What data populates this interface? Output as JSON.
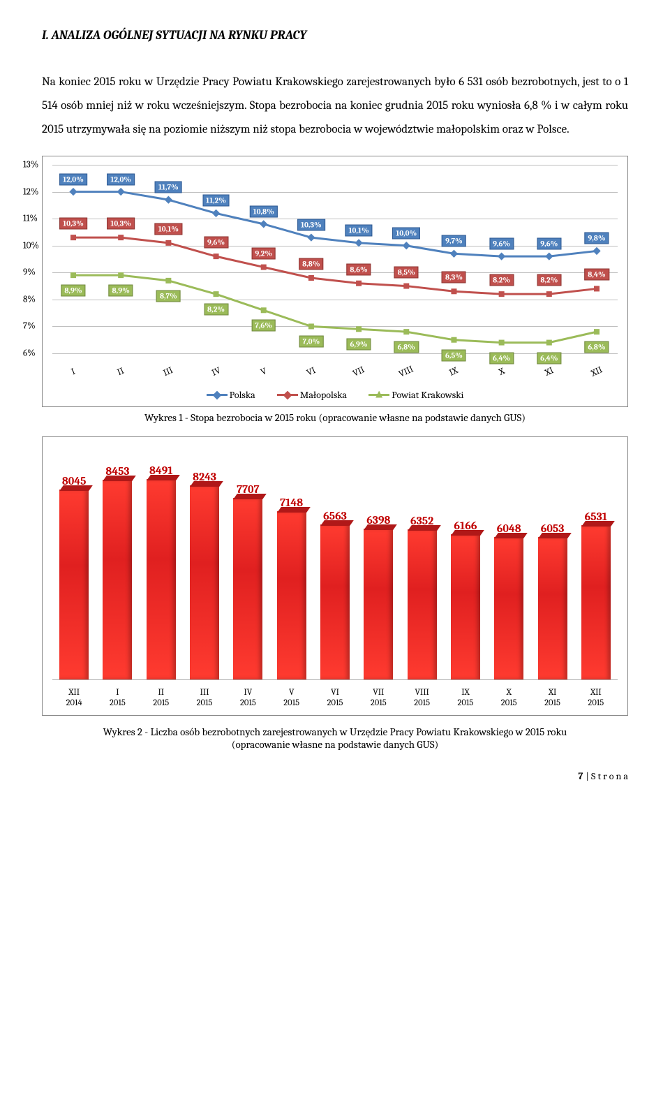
{
  "heading": "I. ANALIZA OGÓLNEJ SYTUACJI NA RYNKU PRACY",
  "paragraph": "Na koniec 2015 roku w Urzędzie Pracy Powiatu Krakowskiego zarejestrowanych było 6 531 osób bezrobotnych, jest to o 1 514 osób mniej niż w roku wcześniejszym. Stopa bezrobocia na koniec grudnia 2015 roku wyniosła 6,8 % i w całym roku 2015 utrzymywała się na poziomie niższym niż stopa bezrobocia w województwie małopolskim oraz w Polsce.",
  "caption1": "Wykres 1 - Stopa bezrobocia  w 2015 roku (opracowanie własne na podstawie danych GUS)",
  "caption2_l1": "Wykres 2 - Liczba osób bezrobotnych zarejestrowanych w Urzędzie Pracy Powiatu Krakowskiego w 2015 roku",
  "caption2_l2": "(opracowanie własne na podstawie danych GUS)",
  "page_num": "7",
  "page_suffix": " | S t r o n a",
  "chart1": {
    "y_min": 6,
    "y_max": 13,
    "y_ticks": [
      "6%",
      "7%",
      "8%",
      "9%",
      "10%",
      "11%",
      "12%",
      "13%"
    ],
    "categories": [
      "I",
      "II",
      "III",
      "IV",
      "V",
      "VI",
      "VII",
      "VIII",
      "IX",
      "X",
      "XI",
      "XII"
    ],
    "series": [
      {
        "name": "Polska",
        "color": "#4f81bd",
        "class": "blue",
        "values": [
          12.0,
          12.0,
          11.7,
          11.2,
          10.8,
          10.3,
          10.1,
          10.0,
          9.7,
          9.6,
          9.6,
          9.8
        ],
        "labels": [
          "12,0%",
          "12,0%",
          "11,7%",
          "11,2%",
          "10,8%",
          "10,3%",
          "10,1%",
          "10,0%",
          "9,7%",
          "9,6%",
          "9,6%",
          "9,8%"
        ],
        "dy": -18
      },
      {
        "name": "Małopolska",
        "color": "#c0504d",
        "class": "red",
        "values": [
          10.3,
          10.3,
          10.1,
          9.6,
          9.2,
          8.8,
          8.6,
          8.5,
          8.3,
          8.2,
          8.2,
          8.4
        ],
        "labels": [
          "10,3%",
          "10,3%",
          "10,1%",
          "9,6%",
          "9,2%",
          "8,8%",
          "8,6%",
          "8,5%",
          "8,3%",
          "8,2%",
          "8,2%",
          "8,4%"
        ],
        "dy": -20
      },
      {
        "name": "Powiat Krakowski",
        "color": "#9bbb59",
        "class": "green",
        "values": [
          8.9,
          8.9,
          8.7,
          8.2,
          7.6,
          7.0,
          6.9,
          6.8,
          6.5,
          6.4,
          6.4,
          6.8
        ],
        "labels": [
          "8,9%",
          "8,9%",
          "8,7%",
          "8,2%",
          "7,6%",
          "7,0%",
          "6,9%",
          "6,8%",
          "6,5%",
          "6,4%",
          "6,4%",
          "6,8%"
        ],
        "dy": 22
      }
    ],
    "legend": [
      "Polska",
      "Małopolska",
      "Powiat Krakowski"
    ]
  },
  "chart2": {
    "max": 9000,
    "categories": [
      "XII 2014",
      "I 2015",
      "II 2015",
      "III 2015",
      "IV 2015",
      "V 2015",
      "VI 2015",
      "VII 2015",
      "VIII 2015",
      "IX 2015",
      "X 2015",
      "XI 2015",
      "XII 2015"
    ],
    "categories_l1": [
      "XII",
      "I",
      "II",
      "III",
      "IV",
      "V",
      "VI",
      "VII",
      "VIII",
      "IX",
      "X",
      "XI",
      "XII"
    ],
    "categories_l2": [
      "2014",
      "2015",
      "2015",
      "2015",
      "2015",
      "2015",
      "2015",
      "2015",
      "2015",
      "2015",
      "2015",
      "2015",
      "2015"
    ],
    "values": [
      8045,
      8453,
      8491,
      8243,
      7707,
      7148,
      6563,
      6398,
      6352,
      6166,
      6048,
      6053,
      6531
    ],
    "bar_color": "#e02020",
    "value_color": "#c00000"
  }
}
